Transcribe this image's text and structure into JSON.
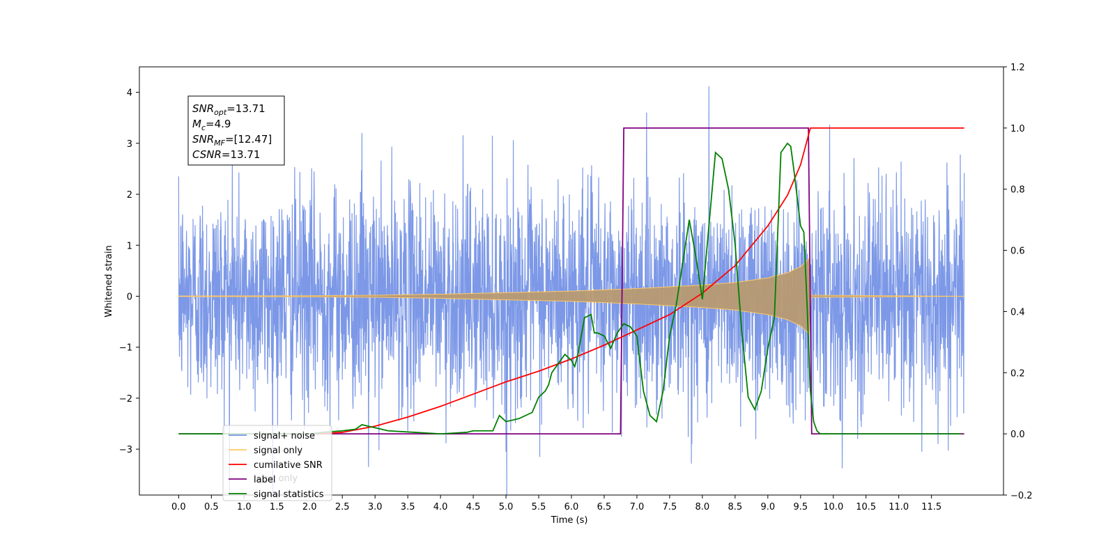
{
  "chart_data": {
    "type": "line",
    "xlabel": "Time (s)",
    "ylabel": "Whitened strain",
    "xlim": [
      -0.6,
      12.6
    ],
    "ylim": [
      -3.9,
      4.5
    ],
    "y2lim": [
      -0.2,
      1.2
    ],
    "x_ticks": [
      "0.0",
      "0.5",
      "1.0",
      "1.5",
      "2.0",
      "2.5",
      "3.0",
      "3.5",
      "4.0",
      "4.5",
      "5.0",
      "5.5",
      "6.0",
      "6.5",
      "7.0",
      "7.5",
      "8.0",
      "8.5",
      "9.0",
      "9.5",
      "10.0",
      "10.5",
      "11.0",
      "11.5"
    ],
    "y_ticks": [
      "4",
      "3",
      "2",
      "1",
      "0",
      "−1",
      "−2",
      "−3"
    ],
    "y2_ticks": [
      "1.2",
      "1.0",
      "0.8",
      "0.6",
      "0.4",
      "0.2",
      "0.0",
      "−0.2"
    ],
    "grid": false,
    "legend_position": "lower-left",
    "legend": [
      {
        "name": "signal+ noise",
        "color": "#7592e6"
      },
      {
        "name": "signal only",
        "color": "#ffc966"
      },
      {
        "name": "cumilative SNR",
        "color": "#ff0000"
      },
      {
        "name": "label",
        "color": "#800080"
      },
      {
        "name": "signal statistics",
        "color": "#008000"
      }
    ],
    "legend_ghost_text": "label only",
    "annotation": {
      "lines": [
        {
          "symbol": "SNR",
          "sub": "opt",
          "value": "=13.71"
        },
        {
          "symbol": "M",
          "sub": "c",
          "value": "=4.9"
        },
        {
          "symbol": "SNR",
          "sub": "MF",
          "value": "=[12.47]"
        },
        {
          "symbol": "CSNR",
          "sub": "",
          "value": "=13.71"
        }
      ]
    },
    "series": [
      {
        "name": "signal+ noise",
        "axis": "left",
        "color": "#7592e6",
        "x_range": [
          0.0,
          12.0
        ],
        "typical_amplitude": 1.05,
        "peak_points": [
          [
            0.0,
            2.35
          ],
          [
            0.82,
            2.8
          ],
          [
            2.8,
            3.2
          ],
          [
            8.1,
            4.12
          ],
          [
            2.9,
            -3.35
          ],
          [
            5.0,
            -3.05
          ],
          [
            11.35,
            -3.05
          ],
          [
            11.6,
            -2.9
          ]
        ]
      },
      {
        "name": "signal only",
        "axis": "left",
        "color": "#ffc966",
        "envelope": [
          [
            0.0,
            0.005
          ],
          [
            2.0,
            0.01
          ],
          [
            3.0,
            0.02
          ],
          [
            4.0,
            0.04
          ],
          [
            5.0,
            0.07
          ],
          [
            6.0,
            0.1
          ],
          [
            7.0,
            0.15
          ],
          [
            8.0,
            0.22
          ],
          [
            8.5,
            0.27
          ],
          [
            9.0,
            0.36
          ],
          [
            9.3,
            0.46
          ],
          [
            9.5,
            0.58
          ],
          [
            9.6,
            0.7
          ],
          [
            9.63,
            0.75
          ],
          [
            9.66,
            0.02
          ],
          [
            12.0,
            0.0
          ]
        ]
      },
      {
        "name": "cumilative SNR",
        "axis": "right",
        "color": "#ff0000",
        "x": [
          2.15,
          2.5,
          3.0,
          3.5,
          4.0,
          4.5,
          5.0,
          5.5,
          6.0,
          6.5,
          7.0,
          7.5,
          8.0,
          8.5,
          9.0,
          9.3,
          9.5,
          9.6,
          9.65,
          12.0
        ],
        "y": [
          0.0,
          0.005,
          0.025,
          0.055,
          0.09,
          0.13,
          0.17,
          0.205,
          0.245,
          0.29,
          0.34,
          0.39,
          0.46,
          0.55,
          0.68,
          0.78,
          0.88,
          0.96,
          1.0,
          1.0
        ]
      },
      {
        "name": "label",
        "axis": "right",
        "color": "#800080",
        "x": [
          0.0,
          6.75,
          6.8,
          9.62,
          9.67,
          12.0
        ],
        "y": [
          0.0,
          0.0,
          1.0,
          1.0,
          0.0,
          0.0
        ]
      },
      {
        "name": "signal statistics",
        "axis": "right",
        "color": "#008000",
        "x": [
          0.0,
          1.0,
          2.0,
          2.2,
          2.5,
          2.7,
          2.8,
          3.0,
          3.2,
          3.6,
          4.0,
          4.4,
          4.5,
          4.8,
          4.9,
          5.0,
          5.2,
          5.4,
          5.5,
          5.6,
          5.65,
          5.7,
          5.9,
          6.0,
          6.05,
          6.1,
          6.2,
          6.3,
          6.35,
          6.4,
          6.5,
          6.6,
          6.7,
          6.8,
          6.9,
          7.0,
          7.1,
          7.2,
          7.3,
          7.4,
          7.5,
          7.6,
          7.7,
          7.8,
          7.9,
          8.0,
          8.1,
          8.2,
          8.3,
          8.4,
          8.5,
          8.6,
          8.7,
          8.8,
          8.9,
          9.0,
          9.1,
          9.2,
          9.3,
          9.35,
          9.4,
          9.5,
          9.55,
          9.6,
          9.65,
          9.7,
          9.75,
          9.8,
          11.95
        ],
        "y": [
          0.0,
          0.0,
          0.0,
          0.005,
          0.01,
          0.015,
          0.03,
          0.02,
          0.01,
          0.005,
          0.0,
          0.005,
          0.01,
          0.01,
          0.06,
          0.04,
          0.05,
          0.07,
          0.12,
          0.14,
          0.16,
          0.2,
          0.26,
          0.24,
          0.22,
          0.26,
          0.38,
          0.39,
          0.33,
          0.33,
          0.32,
          0.28,
          0.33,
          0.36,
          0.35,
          0.32,
          0.14,
          0.06,
          0.04,
          0.14,
          0.32,
          0.42,
          0.56,
          0.7,
          0.58,
          0.44,
          0.68,
          0.92,
          0.9,
          0.8,
          0.62,
          0.34,
          0.12,
          0.08,
          0.14,
          0.28,
          0.38,
          0.92,
          0.95,
          0.94,
          0.86,
          0.68,
          0.66,
          0.42,
          0.14,
          0.04,
          0.01,
          0.0,
          0.0
        ]
      }
    ]
  }
}
